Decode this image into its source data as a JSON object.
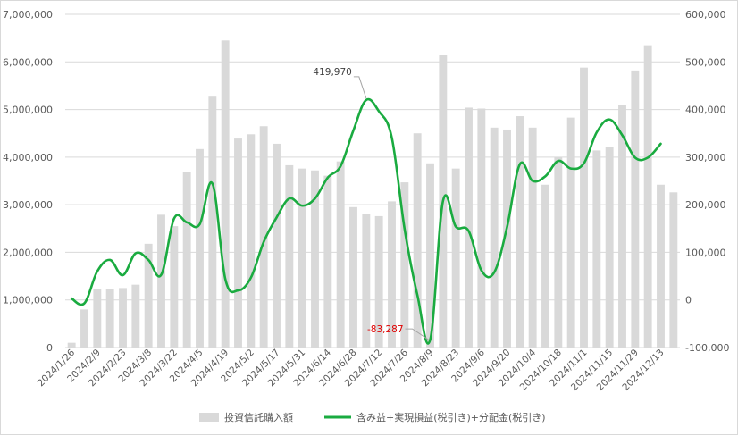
{
  "chart_data": {
    "type": "bar+line",
    "title": "",
    "colors": {
      "bar": "#d9d9d9",
      "line": "#1aab40",
      "grid": "#d9d9d9",
      "axis_text": "#595959",
      "negative_annotation": "#e00000"
    },
    "x_tick_labels": [
      "2024/1/26",
      "2024/2/9",
      "2024/2/23",
      "2024/3/8",
      "2024/3/22",
      "2024/4/5",
      "2024/4/19",
      "2024/5/2",
      "2024/5/17",
      "2024/5/31",
      "2024/6/14",
      "2024/6/28",
      "2024/7/12",
      "2024/7/26",
      "2024/8/9",
      "2024/8/23",
      "2024/9/6",
      "2024/9/20",
      "2024/10/4",
      "2024/10/18",
      "2024/11/1",
      "2024/11/15",
      "2024/11/29",
      "2024/12/13"
    ],
    "left_axis": {
      "min": 0,
      "max": 7000000,
      "step": 1000000,
      "tick_labels": [
        "0",
        "1,000,000",
        "2,000,000",
        "3,000,000",
        "4,000,000",
        "5,000,000",
        "6,000,000",
        "7,000,000"
      ]
    },
    "right_axis": {
      "min": -100000,
      "max": 600000,
      "step": 100000,
      "tick_labels": [
        "-100,000",
        "0",
        "100,000",
        "200,000",
        "300,000",
        "400,000",
        "500,000",
        "600,000"
      ]
    },
    "series": [
      {
        "name": "投資信託購入額",
        "type": "bar",
        "axis": "left",
        "values": [
          100000,
          800000,
          1230000,
          1230000,
          1250000,
          1320000,
          2180000,
          2790000,
          2550000,
          3680000,
          4170000,
          5270000,
          6450000,
          4390000,
          4480000,
          4650000,
          4280000,
          3830000,
          3760000,
          3720000,
          3610000,
          3910000,
          2950000,
          2800000,
          2760000,
          3070000,
          3470000,
          4500000,
          3870000,
          6150000,
          3760000,
          5040000,
          5020000,
          4620000,
          4580000,
          4860000,
          4620000,
          3420000,
          4000000,
          4830000,
          5880000,
          4140000,
          4220000,
          5100000,
          5820000,
          6350000,
          3420000,
          3260000
        ]
      },
      {
        "name": "含み益+実現損益(税引き)+分配金(税引き)",
        "type": "line",
        "axis": "right",
        "values": [
          3000,
          -7000,
          60000,
          84000,
          52000,
          98000,
          84000,
          53000,
          171000,
          163000,
          159000,
          244000,
          44000,
          20000,
          47000,
          122000,
          173000,
          213000,
          198000,
          213000,
          257000,
          281000,
          356000,
          419970,
          396000,
          341000,
          149000,
          10000,
          -83287,
          208000,
          154000,
          145000,
          62000,
          58000,
          153000,
          285000,
          250000,
          260000,
          292000,
          276000,
          287000,
          352000,
          379000,
          346000,
          299000,
          299000,
          328000
        ]
      }
    ],
    "annotations": [
      {
        "text": "419,970",
        "series_index": 1,
        "point_index": 23,
        "color": "#404040"
      },
      {
        "text": "-83,287",
        "series_index": 1,
        "point_index": 28,
        "color": "#e00000"
      }
    ],
    "legend": {
      "position": "bottom-center",
      "entries": [
        "投資信託購入額",
        "含み益+実現損益(税引き)+分配金(税引き)"
      ]
    }
  }
}
